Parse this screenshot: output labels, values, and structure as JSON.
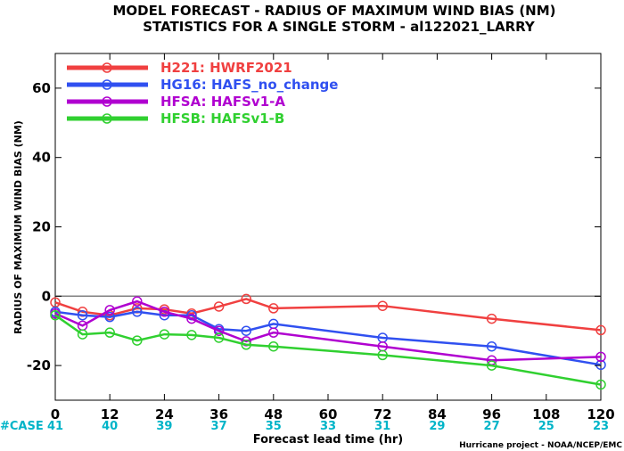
{
  "chart_data": {
    "type": "line",
    "title": "MODEL FORECAST - RADIUS OF MAXIMUM WIND BIAS (NM)",
    "subtitle": "STATISTICS FOR A SINGLE STORM - al122021_LARRY",
    "xlabel": "Forecast lead time (hr)",
    "ylabel": "RADIUS OF MAXIMUM WIND BIAS (NM)",
    "xlim": [
      0,
      120
    ],
    "ylim": [
      -30,
      70
    ],
    "xticks": [
      0,
      12,
      24,
      36,
      48,
      60,
      72,
      84,
      96,
      108,
      120
    ],
    "yticks": [
      -20,
      0,
      20,
      40,
      60
    ],
    "zero_line": true,
    "legend_position": "top-left",
    "case_label": "#CASE",
    "case_counts": [
      41,
      40,
      39,
      37,
      35,
      33,
      31,
      29,
      27,
      25,
      23
    ],
    "series": [
      {
        "name": "H221: HWRF2021",
        "color": "#f04040",
        "x": [
          0,
          6,
          12,
          18,
          24,
          30,
          36,
          42,
          48,
          72,
          96,
          120
        ],
        "y": [
          -1.8,
          -4.5,
          -5.5,
          -3.5,
          -3.8,
          -5.0,
          -3.0,
          -0.8,
          -3.5,
          -2.8,
          -6.5,
          -9.8
        ]
      },
      {
        "name": "HG16: HAFS_no_change",
        "color": "#3050f0",
        "x": [
          0,
          6,
          12,
          18,
          24,
          30,
          36,
          42,
          48,
          72,
          96,
          120
        ],
        "y": [
          -4.5,
          -5.5,
          -6.0,
          -4.5,
          -5.5,
          -5.5,
          -9.5,
          -10.0,
          -8.0,
          -12.0,
          -14.5,
          -19.8
        ]
      },
      {
        "name": "HFSA: HAFSv1-A",
        "color": "#b000d0",
        "x": [
          0,
          6,
          12,
          18,
          24,
          30,
          36,
          42,
          48,
          72,
          96,
          120
        ],
        "y": [
          -5.0,
          -8.5,
          -4.0,
          -1.5,
          -4.5,
          -6.5,
          -10.0,
          -13.0,
          -10.5,
          -14.5,
          -18.5,
          -17.5
        ]
      },
      {
        "name": "HFSB: HAFSv1-B",
        "color": "#30d030",
        "x": [
          0,
          6,
          12,
          18,
          24,
          30,
          36,
          42,
          48,
          72,
          96,
          120
        ],
        "y": [
          -5.5,
          -11.0,
          -10.5,
          -12.8,
          -11.0,
          -11.2,
          -12.0,
          -14.0,
          -14.5,
          -17.0,
          -20.0,
          -25.5
        ]
      }
    ],
    "footer": "Hurricane project - NOAA/NCEP/EMC"
  }
}
